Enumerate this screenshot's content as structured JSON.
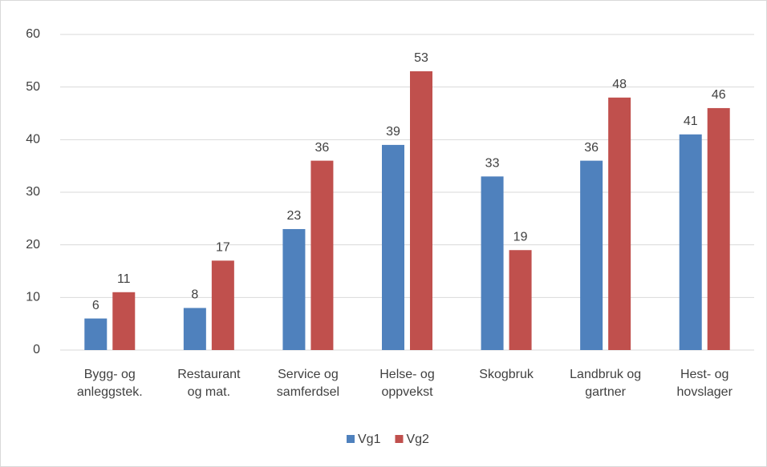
{
  "chart_data": {
    "type": "bar",
    "categories": [
      "Bygg- og\nanleggstek.",
      "Restaurant\nog mat.",
      "Service og\nsamferdsel",
      "Helse- og\noppvekst",
      "Skogbruk",
      "Landbruk og\ngartner",
      "Hest- og\nhovslager"
    ],
    "series": [
      {
        "name": "Vg1",
        "color": "#4f81bd",
        "values": [
          6,
          8,
          23,
          39,
          33,
          36,
          41
        ]
      },
      {
        "name": "Vg2",
        "color": "#c0504d",
        "values": [
          11,
          17,
          36,
          53,
          19,
          48,
          46
        ]
      }
    ],
    "ylim": [
      0,
      60
    ],
    "yticks": [
      0,
      10,
      20,
      30,
      40,
      50,
      60
    ],
    "grid": true,
    "legend": "bottom"
  }
}
